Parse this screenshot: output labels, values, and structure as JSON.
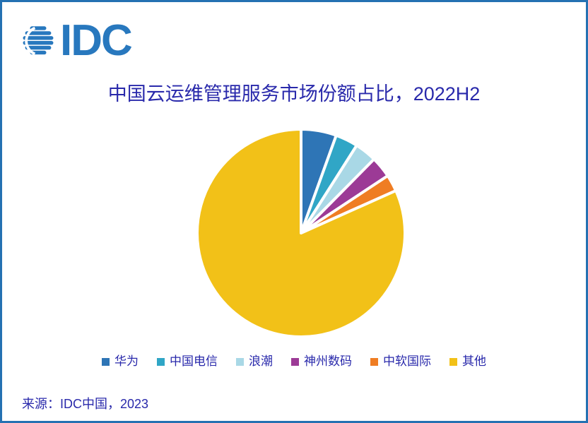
{
  "logo": {
    "text": "IDC"
  },
  "chart_data": {
    "type": "pie",
    "title": "中国云运维管理服务市场份额占比，2022H2",
    "legend_position": "bottom",
    "start_angle": "12-o-clock, clockwise",
    "units": "percent of market share (no data labels shown; values estimated from slice angles)",
    "slices": [
      {
        "label": "华为",
        "value": 5.5,
        "color": "#2E75B6"
      },
      {
        "label": "中国电信",
        "value": 3.5,
        "color": "#30A6C6"
      },
      {
        "label": "浪潮",
        "value": 3.4,
        "color": "#A9D8E6"
      },
      {
        "label": "神州数码",
        "value": 3.3,
        "color": "#9C3A96"
      },
      {
        "label": "中软国际",
        "value": 2.6,
        "color": "#EF7D23"
      },
      {
        "label": "其他",
        "value": 81.7,
        "color": "#F2C118"
      }
    ]
  },
  "source": {
    "text": "来源：IDC中国，2023"
  },
  "colors": {
    "text_navy": "#2929AB",
    "logo_blue": "#2878BE",
    "frame_border": "#2471B2",
    "slice_gap": "#FFFFFF",
    "background": "#FFFFFF"
  }
}
